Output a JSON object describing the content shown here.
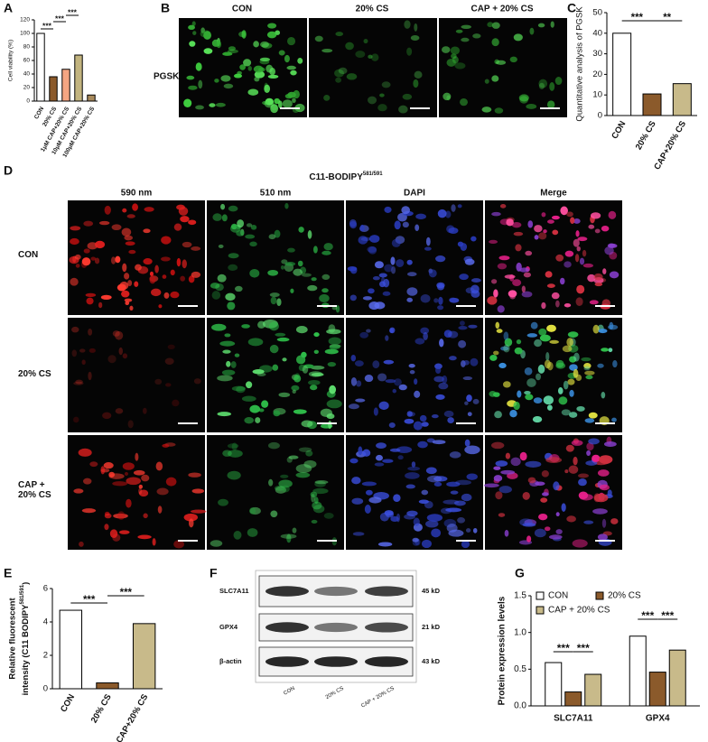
{
  "panel_letters": [
    "A",
    "B",
    "C",
    "D",
    "E",
    "F",
    "G"
  ],
  "chart_data": [
    {
      "type": "bar",
      "ylabel": "Cell viability (%)",
      "categories": [
        "CON",
        "20% CS",
        "1μM CAP+20% CS",
        "10μM CAP+20% CS",
        "100μM CAP+20% CS"
      ],
      "values": [
        100,
        36,
        47,
        68,
        9
      ],
      "colors": [
        "#ffffff",
        "#8b5a2b",
        "#f4a582",
        "#c2b47f",
        "#a88a5c"
      ],
      "ylim": [
        0,
        120
      ],
      "yticks": [
        0,
        20,
        40,
        60,
        80,
        100,
        120
      ],
      "annotations": [
        "***",
        "***",
        "***"
      ]
    },
    {
      "type": "bar",
      "ylabel": "Quantitative analysis of PGSK",
      "categories": [
        "CON",
        "20% CS",
        "CAP+20% CS"
      ],
      "values": [
        40,
        10.5,
        15.5
      ],
      "colors": [
        "#ffffff",
        "#8b5a2b",
        "#c8ba8a"
      ],
      "ylim": [
        0,
        50
      ],
      "yticks": [
        0,
        10,
        20,
        30,
        40,
        50
      ],
      "annotations": [
        "***",
        "**"
      ]
    },
    {
      "type": "bar",
      "ylabel": {
        "lines": [
          "Relative fluorescent",
          "intensity (C11 BODIPY"
        ],
        "superscript": "581/591",
        "end": ")"
      },
      "categories": [
        "CON",
        "20% CS",
        "CAP+20% CS"
      ],
      "values": [
        4.7,
        0.35,
        3.9
      ],
      "colors": [
        "#ffffff",
        "#8b5a2b",
        "#c8ba8a"
      ],
      "ylim": [
        0,
        6
      ],
      "yticks": [
        0,
        2,
        4,
        6
      ],
      "annotations": [
        "***",
        "***"
      ]
    },
    {
      "type": "bar",
      "ylabel": "Protein expression levels",
      "categories": [
        "SLC7A11",
        "GPX4"
      ],
      "series": [
        {
          "name": "CON",
          "color": "#ffffff",
          "values": [
            0.59,
            0.95
          ]
        },
        {
          "name": "20% CS",
          "color": "#8b5a2b",
          "values": [
            0.19,
            0.46
          ]
        },
        {
          "name": "CAP + 20% CS",
          "color": "#c8ba8a",
          "values": [
            0.43,
            0.76
          ]
        }
      ],
      "ylim": [
        0,
        1.5
      ],
      "yticks": [
        {
          "value": 0,
          "label": "0.0"
        },
        {
          "value": 0.5,
          "label": "0.5"
        },
        {
          "value": 1,
          "label": "1.0"
        },
        {
          "value": 1.5,
          "label": "1.5"
        }
      ],
      "annotations": [
        "***",
        "***",
        "***",
        "***"
      ]
    }
  ],
  "fluorescence_b": {
    "columns": [
      "CON",
      "20% CS",
      "CAP + 20% CS"
    ],
    "rows": [
      "PGSK"
    ]
  },
  "fluorescence_d": {
    "title": "C11-BODIPY",
    "title_superscript": "581/591",
    "columns": [
      "590 nm",
      "510 nm",
      "DAPI",
      "Merge"
    ],
    "rows": [
      "CON",
      "20% CS",
      "CAP + 20% CS"
    ]
  },
  "blot": {
    "proteins": [
      "SLC7A11",
      "GPX4",
      "β-actin"
    ],
    "sizes": [
      "45 kD",
      "21 kD",
      "43 kD"
    ],
    "lanes": [
      "CON",
      "20% CS",
      "CAP + 20% CS"
    ]
  }
}
